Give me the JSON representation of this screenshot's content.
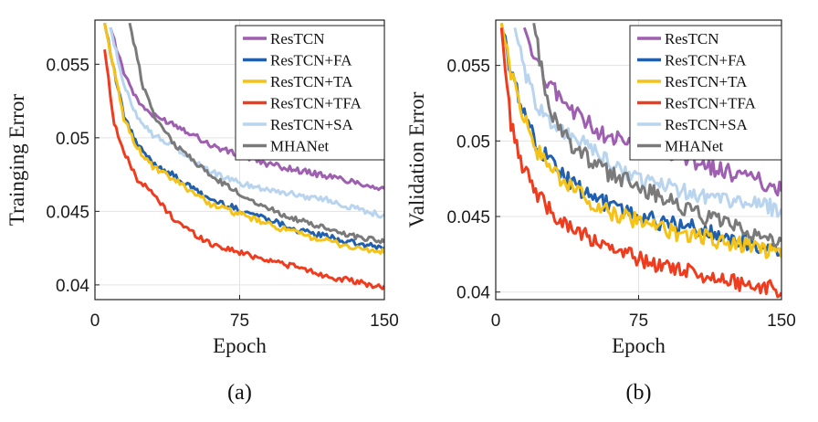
{
  "chart_data": [
    {
      "type": "line",
      "caption": "(a)",
      "xlabel": "Epoch",
      "ylabel": "Trainging Error",
      "xlim": [
        0,
        150
      ],
      "ylim": [
        0.039,
        0.058
      ],
      "xticks": [
        0,
        75,
        150
      ],
      "yticks": [
        0.04,
        0.045,
        0.05,
        0.055
      ],
      "ytick_labels": [
        "0.04",
        "0.045",
        "0.05",
        "0.055"
      ],
      "grid": true,
      "legend_position": "top-right",
      "series": [
        {
          "name": "ResTCN",
          "color": "#9e5fb0",
          "x": [
            8,
            15,
            22,
            30,
            40,
            50,
            60,
            75,
            90,
            105,
            120,
            135,
            150
          ],
          "values": [
            0.0575,
            0.0545,
            0.0525,
            0.0515,
            0.051,
            0.0503,
            0.0495,
            0.0488,
            0.0482,
            0.0478,
            0.0474,
            0.047,
            0.0465
          ]
        },
        {
          "name": "ResTCN+FA",
          "color": "#1f5fae",
          "x": [
            5,
            10,
            15,
            22,
            30,
            40,
            50,
            60,
            75,
            90,
            105,
            120,
            135,
            150
          ],
          "values": [
            0.0578,
            0.0545,
            0.0515,
            0.0495,
            0.0483,
            0.0475,
            0.0466,
            0.0458,
            0.0451,
            0.0445,
            0.0437,
            0.0433,
            0.0428,
            0.0425
          ]
        },
        {
          "name": "ResTCN+TA",
          "color": "#f5c218",
          "x": [
            5,
            10,
            15,
            22,
            30,
            40,
            50,
            60,
            75,
            90,
            105,
            120,
            135,
            150
          ],
          "values": [
            0.0578,
            0.0545,
            0.0513,
            0.0493,
            0.048,
            0.0472,
            0.0464,
            0.0455,
            0.0448,
            0.0441,
            0.0435,
            0.043,
            0.0425,
            0.0422
          ]
        },
        {
          "name": "ResTCN+TFA",
          "color": "#f03c1e",
          "x": [
            5,
            10,
            15,
            22,
            30,
            40,
            50,
            60,
            75,
            90,
            105,
            120,
            135,
            150
          ],
          "values": [
            0.056,
            0.051,
            0.049,
            0.0472,
            0.0462,
            0.0446,
            0.0436,
            0.0428,
            0.0422,
            0.0417,
            0.0412,
            0.0406,
            0.0402,
            0.0398
          ]
        },
        {
          "name": "ResTCN+SA",
          "color": "#b8d4ee",
          "x": [
            8,
            15,
            22,
            30,
            40,
            50,
            60,
            75,
            90,
            105,
            120,
            135,
            150
          ],
          "values": [
            0.0575,
            0.0535,
            0.0515,
            0.0502,
            0.0495,
            0.0485,
            0.0477,
            0.0469,
            0.0465,
            0.0461,
            0.0458,
            0.0452,
            0.0447
          ]
        },
        {
          "name": "MHANet",
          "color": "#7a7a7a",
          "x": [
            18,
            25,
            32,
            40,
            50,
            60,
            75,
            90,
            105,
            120,
            135,
            150
          ],
          "values": [
            0.0578,
            0.0535,
            0.0512,
            0.0497,
            0.0486,
            0.0474,
            0.0462,
            0.0452,
            0.0444,
            0.0438,
            0.0433,
            0.043
          ]
        }
      ]
    },
    {
      "type": "line",
      "caption": "(b)",
      "xlabel": "Epoch",
      "ylabel": "Validation Error",
      "xlim": [
        0,
        150
      ],
      "ylim": [
        0.0395,
        0.058
      ],
      "xticks": [
        0,
        75,
        150
      ],
      "yticks": [
        0.04,
        0.045,
        0.05,
        0.055
      ],
      "ytick_labels": [
        "0.04",
        "0.045",
        "0.05",
        "0.055"
      ],
      "grid": true,
      "legend_position": "top-right",
      "series": [
        {
          "name": "ResTCN",
          "color": "#9e5fb0",
          "x": [
            15,
            22,
            30,
            40,
            50,
            60,
            75,
            90,
            105,
            120,
            135,
            150
          ],
          "values": [
            0.0575,
            0.055,
            0.0535,
            0.052,
            0.051,
            0.0502,
            0.0497,
            0.049,
            0.0485,
            0.048,
            0.0475,
            0.0468
          ]
        },
        {
          "name": "ResTCN+FA",
          "color": "#1f5fae",
          "x": [
            3,
            8,
            15,
            22,
            30,
            40,
            50,
            60,
            75,
            90,
            105,
            120,
            135,
            150
          ],
          "values": [
            0.0578,
            0.0545,
            0.052,
            0.0495,
            0.0485,
            0.0472,
            0.0462,
            0.0458,
            0.045,
            0.0445,
            0.0442,
            0.0437,
            0.0432,
            0.0428
          ]
        },
        {
          "name": "ResTCN+TA",
          "color": "#f5c218",
          "x": [
            3,
            8,
            15,
            22,
            30,
            40,
            50,
            60,
            75,
            90,
            105,
            120,
            135,
            150
          ],
          "values": [
            0.0578,
            0.0545,
            0.0515,
            0.0493,
            0.048,
            0.0468,
            0.046,
            0.0452,
            0.0447,
            0.044,
            0.0438,
            0.0432,
            0.043,
            0.0425
          ]
        },
        {
          "name": "ResTCN+TFA",
          "color": "#f03c1e",
          "x": [
            3,
            8,
            15,
            22,
            30,
            40,
            50,
            60,
            75,
            90,
            105,
            120,
            135,
            150
          ],
          "values": [
            0.0575,
            0.051,
            0.048,
            0.0465,
            0.0452,
            0.0442,
            0.0435,
            0.0428,
            0.0422,
            0.0417,
            0.0413,
            0.0408,
            0.0404,
            0.0402
          ]
        },
        {
          "name": "ResTCN+SA",
          "color": "#b8d4ee",
          "x": [
            10,
            15,
            22,
            30,
            40,
            50,
            60,
            75,
            90,
            105,
            120,
            135,
            150
          ],
          "values": [
            0.0575,
            0.0545,
            0.0522,
            0.0512,
            0.0502,
            0.0495,
            0.0485,
            0.0475,
            0.047,
            0.0465,
            0.0462,
            0.0458,
            0.0455
          ]
        },
        {
          "name": "MHANet",
          "color": "#7a7a7a",
          "x": [
            20,
            25,
            30,
            40,
            50,
            60,
            75,
            90,
            105,
            120,
            135,
            150
          ],
          "values": [
            0.0578,
            0.054,
            0.0515,
            0.0497,
            0.0487,
            0.0478,
            0.047,
            0.0462,
            0.0452,
            0.0445,
            0.0438,
            0.0435
          ]
        }
      ]
    }
  ]
}
